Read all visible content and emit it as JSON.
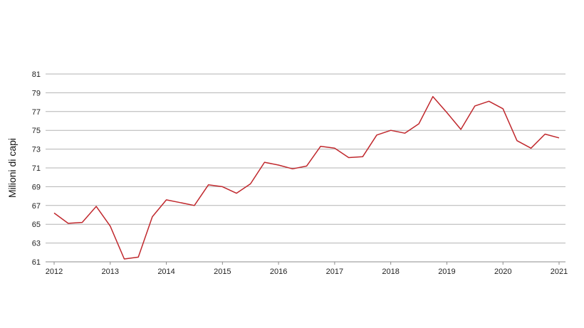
{
  "chart_data": {
    "type": "line",
    "title": "",
    "xlabel": "",
    "ylabel": "Milioni di capi",
    "x_tick_labels": [
      "2012",
      "2013",
      "2014",
      "2015",
      "2016",
      "2017",
      "2018",
      "2019",
      "2020",
      "2021"
    ],
    "y_ticks": [
      61,
      63,
      65,
      67,
      69,
      71,
      73,
      75,
      77,
      79,
      81
    ],
    "ylim": [
      61,
      81
    ],
    "xlim": [
      2012,
      2021
    ],
    "grid": true,
    "legend": "none",
    "series": [
      {
        "color": "#c0282d",
        "x": [
          2012.0,
          2012.25,
          2012.5,
          2012.75,
          2013.0,
          2013.25,
          2013.5,
          2013.75,
          2014.0,
          2014.25,
          2014.5,
          2014.75,
          2015.0,
          2015.25,
          2015.5,
          2015.75,
          2016.0,
          2016.25,
          2016.5,
          2016.75,
          2017.0,
          2017.25,
          2017.5,
          2017.75,
          2018.0,
          2018.25,
          2018.5,
          2018.75,
          2019.0,
          2019.25,
          2019.5,
          2019.75,
          2020.0,
          2020.25,
          2020.5,
          2020.75,
          2021.0
        ],
        "values": [
          66.2,
          65.1,
          65.2,
          66.9,
          64.8,
          61.3,
          61.5,
          65.8,
          67.6,
          67.3,
          67.0,
          69.2,
          69.0,
          68.3,
          69.3,
          71.6,
          71.3,
          70.9,
          71.2,
          73.3,
          73.1,
          72.1,
          72.2,
          74.5,
          75.0,
          74.7,
          75.7,
          78.6,
          76.9,
          75.1,
          77.6,
          78.1,
          77.3,
          73.9,
          73.1,
          74.6,
          74.2
        ]
      }
    ]
  }
}
